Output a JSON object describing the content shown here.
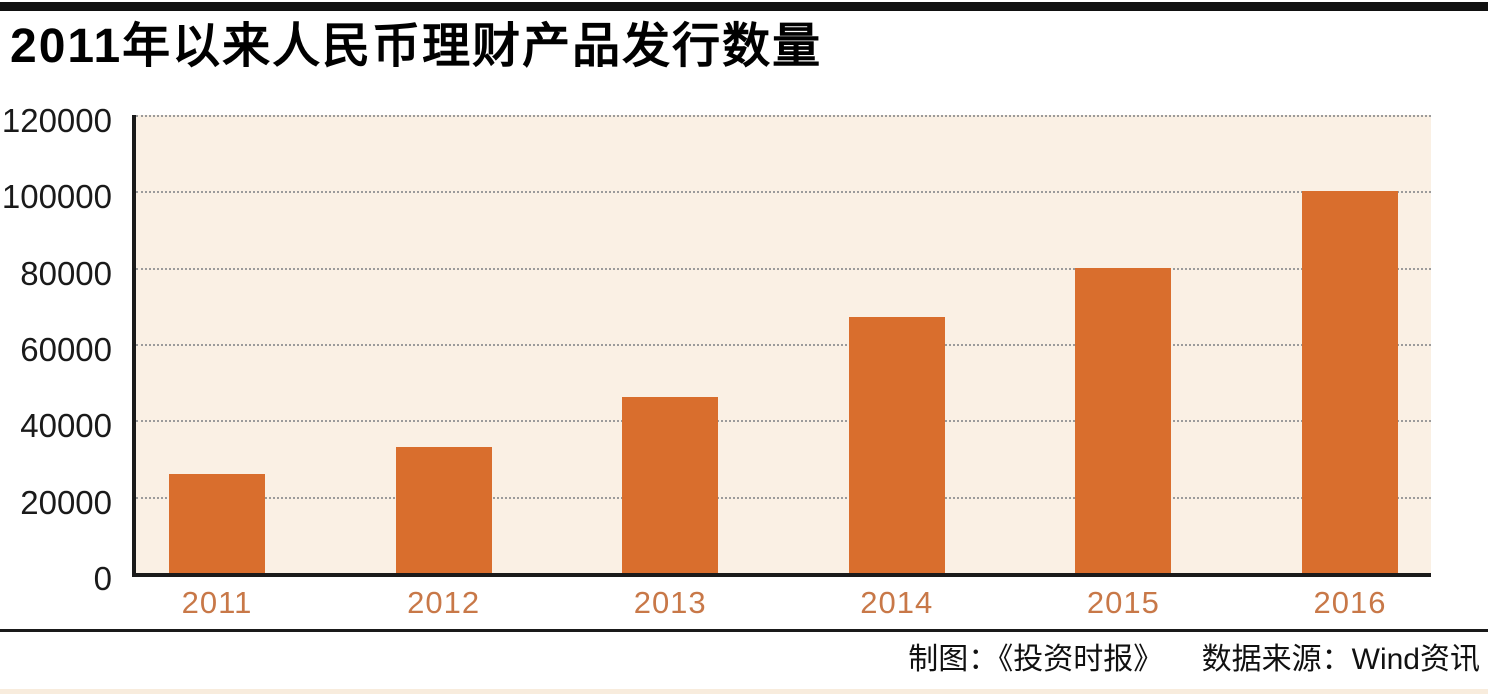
{
  "page": {
    "footer": {
      "credit": "制图：《投资时报》",
      "source": "数据来源：Wind资讯"
    }
  },
  "colors": {
    "bar": "#d96e2d",
    "plot_background": "#faf0e4",
    "axis": "#1a1a1a",
    "gridline": "#9b9b9b",
    "year_label": "#c87848",
    "top_bar": "#111111",
    "bottom_strip": "#f8ecdd"
  },
  "chart_data": {
    "type": "bar",
    "title": "2011年以来人民币理财产品发行数量",
    "categories": [
      "2011",
      "2012",
      "2013",
      "2014",
      "2015",
      "2016"
    ],
    "values": [
      26000,
      33000,
      46000,
      67000,
      80000,
      100000
    ],
    "series_name": "人民币理财产品发行数量",
    "xlabel": "",
    "ylabel": "",
    "yticks": [
      0,
      20000,
      40000,
      60000,
      80000,
      100000,
      120000
    ],
    "ylim": [
      0,
      120000
    ],
    "grid": "horizontal-dotted",
    "legend": "none",
    "plot_background": "#faf0e4",
    "bar_color": "#d96e2d"
  }
}
